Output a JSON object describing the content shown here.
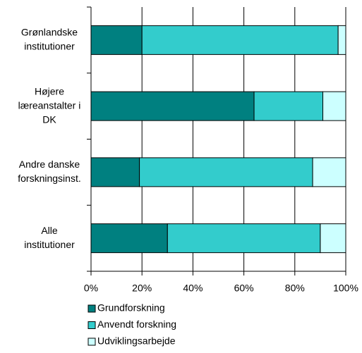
{
  "chart_data": {
    "type": "stacked-bar-horizontal",
    "categories": [
      [
        "Grønlandske",
        "institutioner"
      ],
      [
        "Højere",
        "læreanstalter i",
        "DK"
      ],
      [
        "Andre danske",
        "forskningsinst."
      ],
      [
        "Alle",
        "institutioner"
      ]
    ],
    "series": [
      {
        "name": "Grundforskning",
        "color": "#008080",
        "values": [
          20,
          64,
          19,
          30
        ]
      },
      {
        "name": "Anvendt forskning",
        "color": "#33cccc",
        "values": [
          77,
          27,
          68,
          60
        ]
      },
      {
        "name": "Udviklingsarbejde",
        "color": "#ccffff",
        "values": [
          3,
          9,
          13,
          10
        ]
      }
    ],
    "xlim": [
      0,
      100
    ],
    "xticks": [
      {
        "value": 0,
        "label": "0%"
      },
      {
        "value": 20,
        "label": "20%"
      },
      {
        "value": 40,
        "label": "40%"
      },
      {
        "value": 60,
        "label": "60%"
      },
      {
        "value": 80,
        "label": "80%"
      },
      {
        "value": 100,
        "label": "100%"
      }
    ],
    "grid": true
  }
}
